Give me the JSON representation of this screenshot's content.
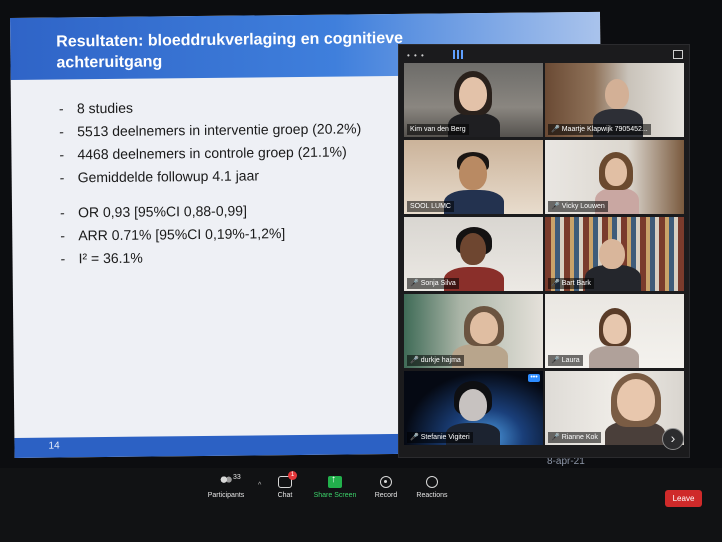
{
  "slide": {
    "title": "Resultaten: bloeddrukverlaging en cognitieve achteruitgang",
    "bullets": [
      "8 studies",
      "5513 deelnemers in interventie groep (20.2%)",
      "4468 deelnemers in controle groep (21.1%)",
      "Gemiddelde followup 4.1 jaar",
      "OR 0,93  [95%CI  0,88-0,99]",
      "ARR 0.71%   [95%CI  0,19%-1,2%]",
      "I² = 36.1%"
    ],
    "bullet_marker": "-",
    "page_number": "14",
    "date": "8-apr-21"
  },
  "gallery": {
    "top_dots": "• • •",
    "tile_more": "•••",
    "next_arrow": "›",
    "participants": [
      {
        "name": "Kim van den Berg",
        "muted": false,
        "active": true
      },
      {
        "name": "Maartje Klapwijk 7905452...",
        "muted": true,
        "active": false
      },
      {
        "name": "SOOL LUMC",
        "muted": false,
        "active": false
      },
      {
        "name": "Vicky Louwen",
        "muted": true,
        "active": false
      },
      {
        "name": "Sonja Silva",
        "muted": true,
        "active": false
      },
      {
        "name": "Bart Bark",
        "muted": true,
        "active": false
      },
      {
        "name": "durkje hajma",
        "muted": true,
        "active": false
      },
      {
        "name": "Laura",
        "muted": true,
        "active": false
      },
      {
        "name": "Stefanie Vigiteri",
        "muted": true,
        "active": false
      },
      {
        "name": "Rianne Kok",
        "muted": true,
        "active": false
      }
    ],
    "mic_muted_icon": "🎤"
  },
  "toolbar": {
    "participants_label": "Participants",
    "participants_count": "33",
    "caret": "^",
    "chat_label": "Chat",
    "chat_badge": "1",
    "share_label": "Share Screen",
    "record_label": "Record",
    "reactions_label": "Reactions",
    "leave_label": "Leave"
  },
  "colors": {
    "slide_header": "#2f64c7",
    "active_speaker": "#d9e23a",
    "share_green": "#22b14c",
    "leave_red": "#cf2a2a"
  }
}
